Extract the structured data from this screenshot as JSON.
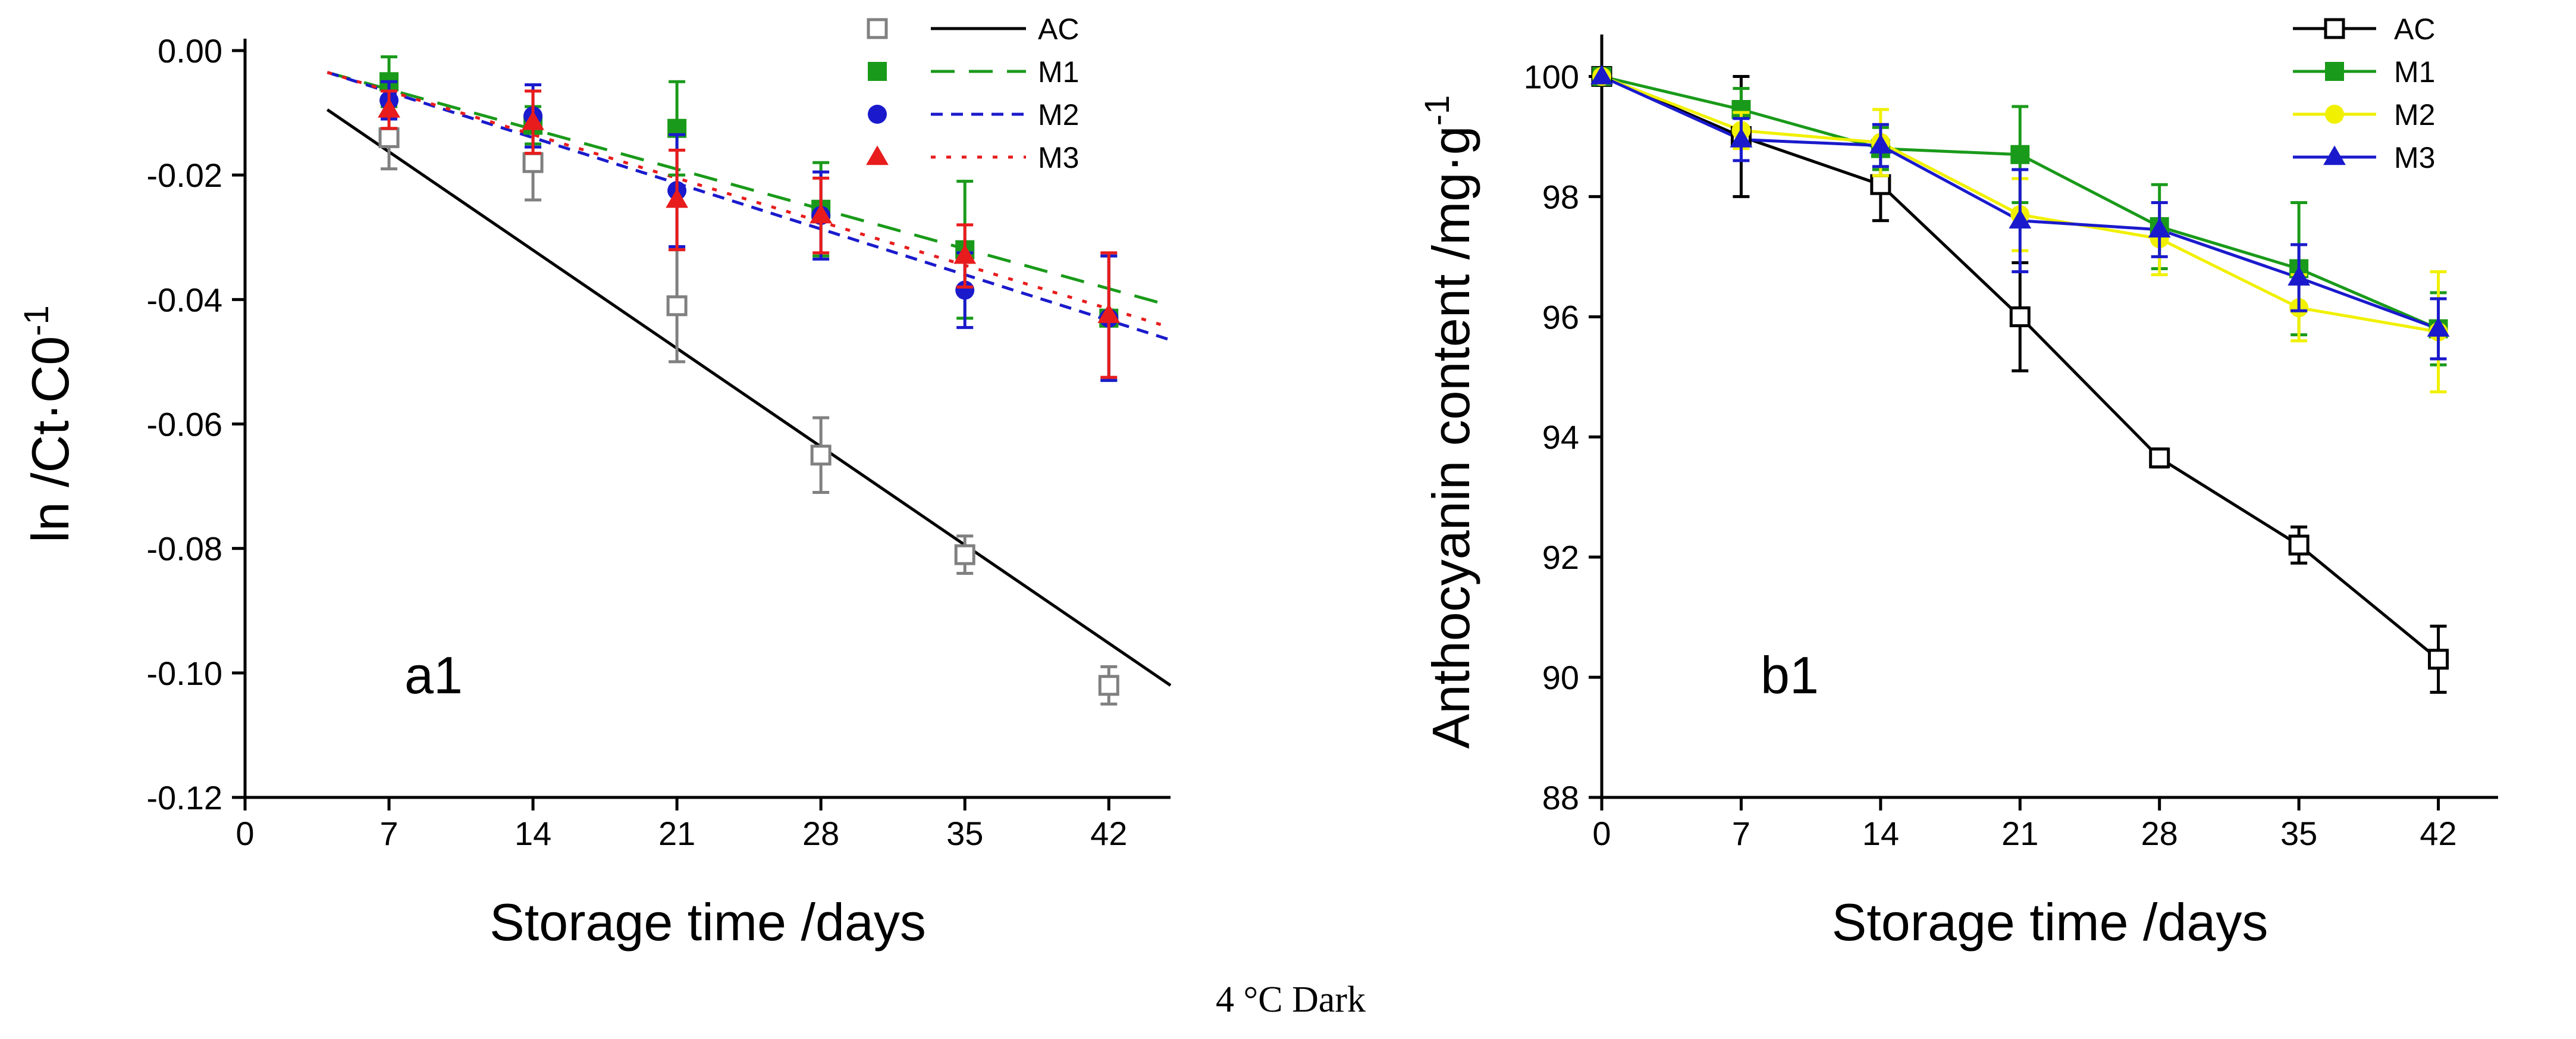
{
  "figure": {
    "caption": "4 °C Dark"
  },
  "chart_data": [
    {
      "type": "scatter",
      "panel_label": "a1",
      "xlabel": "Storage time /days",
      "ylabel": "ln /Ct·C0",
      "ylabel_superscript": "-1",
      "xlim": [
        0,
        45
      ],
      "ylim": [
        -0.12,
        0.0
      ],
      "x_ticks": [
        0,
        7,
        14,
        21,
        28,
        35,
        42
      ],
      "x_tick_labels": [
        "0",
        "7",
        "14",
        "21",
        "28",
        "35",
        "42"
      ],
      "y_ticks": [
        0.0,
        -0.02,
        -0.04,
        -0.06,
        -0.08,
        -0.1,
        -0.12
      ],
      "y_tick_labels": [
        "0.00",
        "-0.02",
        "-0.04",
        "-0.06",
        "-0.08",
        "-0.10",
        "-0.12"
      ],
      "legend_position": "top-right",
      "series": [
        {
          "name": "AC",
          "color": "#808080",
          "marker": "open-square",
          "fit_color": "#000000",
          "fit_dash": "solid",
          "x": [
            7,
            14,
            21,
            28,
            35,
            42
          ],
          "y": [
            -0.014,
            -0.018,
            -0.041,
            -0.065,
            -0.081,
            -0.102
          ],
          "err": [
            0.005,
            0.006,
            0.009,
            0.006,
            0.003,
            0.003
          ],
          "fit": {
            "x": [
              4,
              45
            ],
            "y": [
              -0.0095,
              -0.102
            ]
          }
        },
        {
          "name": "M1",
          "color": "#1a9a1a",
          "marker": "square",
          "fit_color": "#1a9a1a",
          "fit_dash": "dashed",
          "x": [
            7,
            14,
            21,
            28,
            35,
            42
          ],
          "y": [
            -0.005,
            -0.012,
            -0.0125,
            -0.0255,
            -0.032,
            -0.043
          ],
          "err": [
            0.004,
            0.003,
            0.0075,
            0.0075,
            0.011,
            0.01
          ],
          "fit": {
            "x": [
              4,
              45
            ],
            "y": [
              -0.0035,
              -0.041
            ]
          }
        },
        {
          "name": "M2",
          "color": "#1a1acc",
          "marker": "circle",
          "fit_color": "#1a1acc",
          "fit_dash": "short-dash",
          "x": [
            7,
            14,
            21,
            28,
            35,
            42
          ],
          "y": [
            -0.008,
            -0.0105,
            -0.0225,
            -0.0265,
            -0.0385,
            -0.043
          ],
          "err": [
            0.003,
            0.005,
            0.009,
            0.007,
            0.006,
            0.01
          ],
          "fit": {
            "x": [
              4,
              45
            ],
            "y": [
              -0.0035,
              -0.0465
            ]
          }
        },
        {
          "name": "M3",
          "color": "#e81c1c",
          "marker": "triangle",
          "fit_color": "#e81c1c",
          "fit_dash": "dotted",
          "x": [
            7,
            14,
            21,
            28,
            35,
            42
          ],
          "y": [
            -0.0095,
            -0.0115,
            -0.024,
            -0.0265,
            -0.033,
            -0.0425
          ],
          "err": [
            0.003,
            0.005,
            0.008,
            0.006,
            0.005,
            0.01
          ],
          "fit": {
            "x": [
              4,
              45
            ],
            "y": [
              -0.0035,
              -0.0445
            ]
          }
        }
      ]
    },
    {
      "type": "line",
      "panel_label": "b1",
      "xlabel": "Storage time /days",
      "ylabel": "Anthocyanin content /mg·g",
      "ylabel_superscript": "-1",
      "xlim": [
        0,
        45
      ],
      "ylim": [
        88,
        100.5
      ],
      "x_ticks": [
        0,
        7,
        14,
        21,
        28,
        35,
        42
      ],
      "x_tick_labels": [
        "0",
        "7",
        "14",
        "21",
        "28",
        "35",
        "42"
      ],
      "y_ticks": [
        88,
        90,
        92,
        94,
        96,
        98,
        100
      ],
      "y_tick_labels": [
        "88",
        "90",
        "92",
        "94",
        "96",
        "98",
        "100"
      ],
      "legend_position": "top-right",
      "series": [
        {
          "name": "AC",
          "color": "#000000",
          "marker": "open-square",
          "x": [
            0,
            7,
            14,
            21,
            28,
            35,
            42
          ],
          "y": [
            100,
            99.0,
            98.2,
            96.0,
            93.65,
            92.2,
            90.3
          ],
          "err": [
            0,
            1.0,
            0.6,
            0.9,
            0.15,
            0.3,
            0.55
          ]
        },
        {
          "name": "M1",
          "color": "#1a9a1a",
          "marker": "square",
          "x": [
            0,
            7,
            14,
            21,
            28,
            35,
            42
          ],
          "y": [
            100,
            99.45,
            98.8,
            98.7,
            97.5,
            96.8,
            95.8
          ],
          "err": [
            0,
            0.35,
            0.35,
            0.8,
            0.7,
            1.1,
            0.6
          ]
        },
        {
          "name": "M2",
          "color": "#f0f000",
          "marker": "circle",
          "x": [
            0,
            7,
            14,
            21,
            28,
            35,
            42
          ],
          "y": [
            100,
            99.1,
            98.9,
            97.7,
            97.3,
            96.15,
            95.75
          ],
          "err": [
            0,
            0.3,
            0.55,
            0.6,
            0.6,
            0.55,
            1.0
          ]
        },
        {
          "name": "M3",
          "color": "#1a1acc",
          "marker": "triangle",
          "x": [
            0,
            7,
            14,
            21,
            28,
            35,
            42
          ],
          "y": [
            100,
            98.95,
            98.85,
            97.6,
            97.45,
            96.65,
            95.8
          ],
          "err": [
            0,
            0.35,
            0.35,
            0.85,
            0.45,
            0.55,
            0.5
          ]
        }
      ]
    }
  ]
}
